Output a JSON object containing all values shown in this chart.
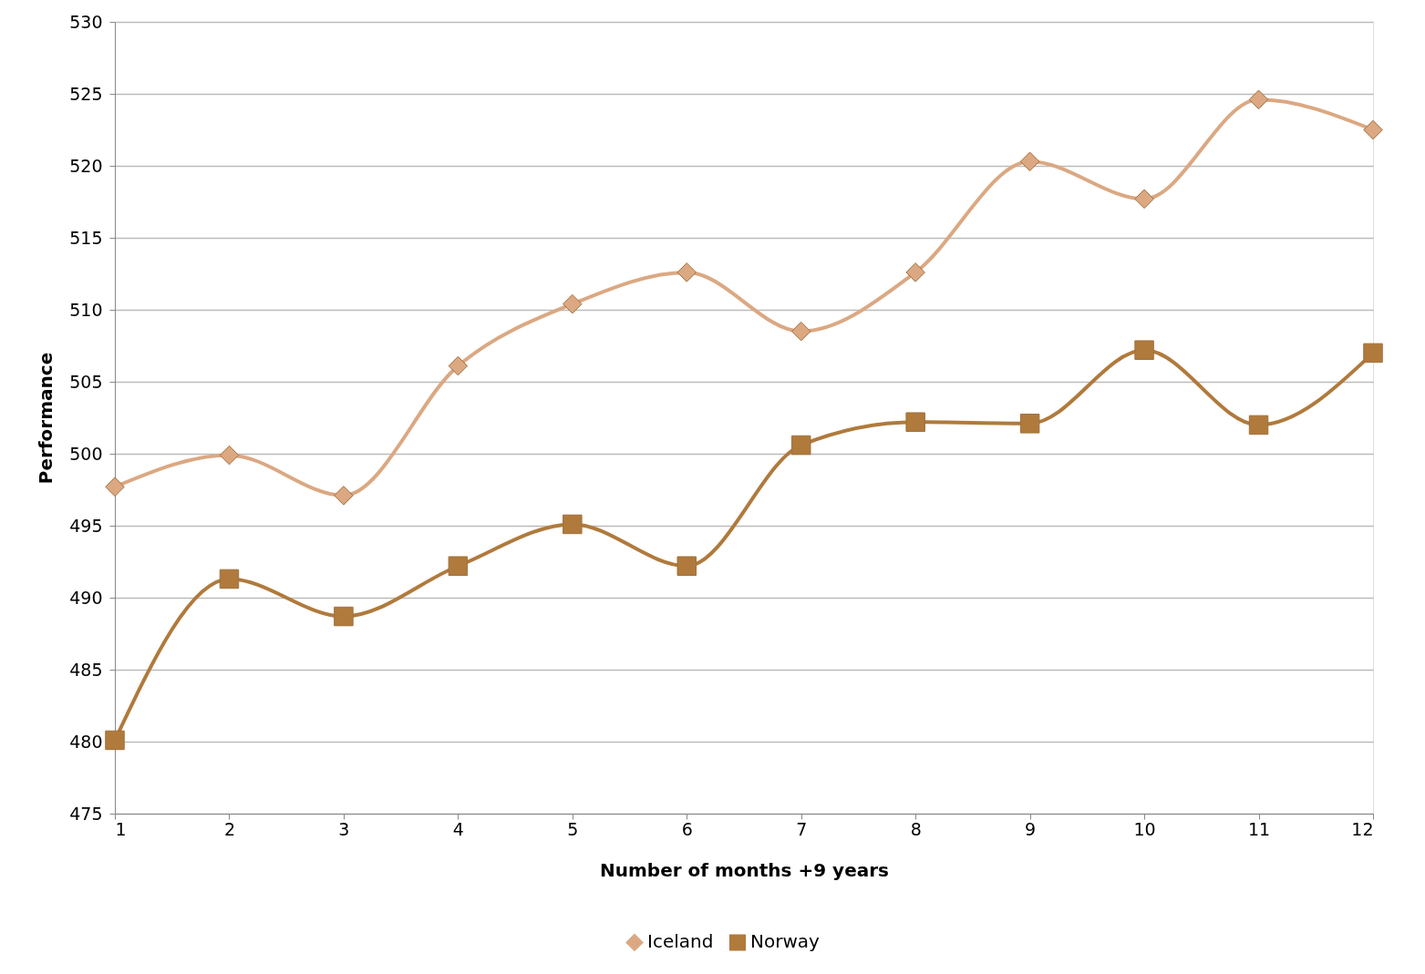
{
  "chart_data": {
    "type": "line",
    "xlabel": "Number of months +9 years",
    "ylabel": "Performance",
    "x": [
      1,
      2,
      3,
      4,
      5,
      6,
      7,
      8,
      9,
      10,
      11,
      12
    ],
    "series": [
      {
        "name": "Iceland",
        "color": "#dba882",
        "marker": "diamond",
        "values": [
          497.7,
          499.9,
          497.1,
          506.1,
          510.4,
          512.6,
          508.5,
          512.6,
          520.3,
          517.7,
          524.6,
          522.5
        ]
      },
      {
        "name": "Norway",
        "color": "#b07a3c",
        "marker": "square",
        "values": [
          480.1,
          491.3,
          488.7,
          492.2,
          495.1,
          492.2,
          500.6,
          502.2,
          502.1,
          507.2,
          502.0,
          507.0
        ]
      }
    ],
    "xlim": [
      1,
      12
    ],
    "xticks": [
      1,
      2,
      3,
      4,
      5,
      6,
      7,
      8,
      9,
      10,
      11,
      12
    ],
    "ylim": [
      475,
      530
    ],
    "yticks": [
      475,
      480,
      485,
      490,
      495,
      500,
      505,
      510,
      515,
      520,
      525,
      530
    ],
    "grid": "y",
    "legend": "bottom"
  }
}
